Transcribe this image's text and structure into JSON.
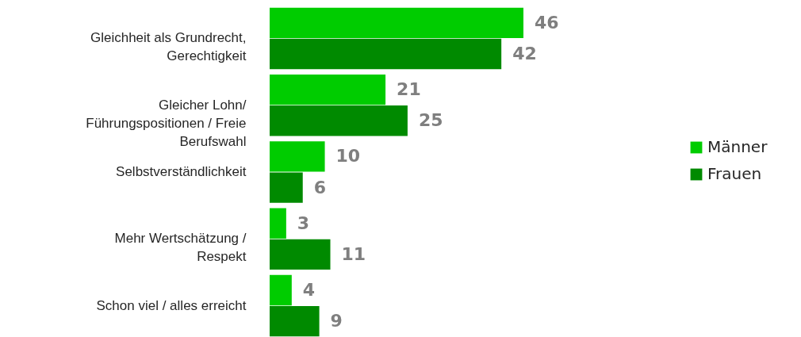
{
  "chart_data": {
    "type": "bar",
    "orientation": "horizontal",
    "data_labels": true,
    "legend": "right",
    "categories": [
      "Gleichheit als Grundrecht, Gerechtigkeit",
      "Gleicher Lohn/ Führungspositionen / Freie Berufswahl",
      "Selbstverständlichkeit",
      "Mehr Wertschätzung / Respekt",
      "Schon viel / alles erreicht"
    ],
    "series": [
      {
        "name": "Männer",
        "color": "#00cc00",
        "values": [
          46,
          21,
          10,
          3,
          4
        ]
      },
      {
        "name": "Frauen",
        "color": "#008a00",
        "values": [
          42,
          25,
          6,
          11,
          9
        ]
      }
    ]
  }
}
